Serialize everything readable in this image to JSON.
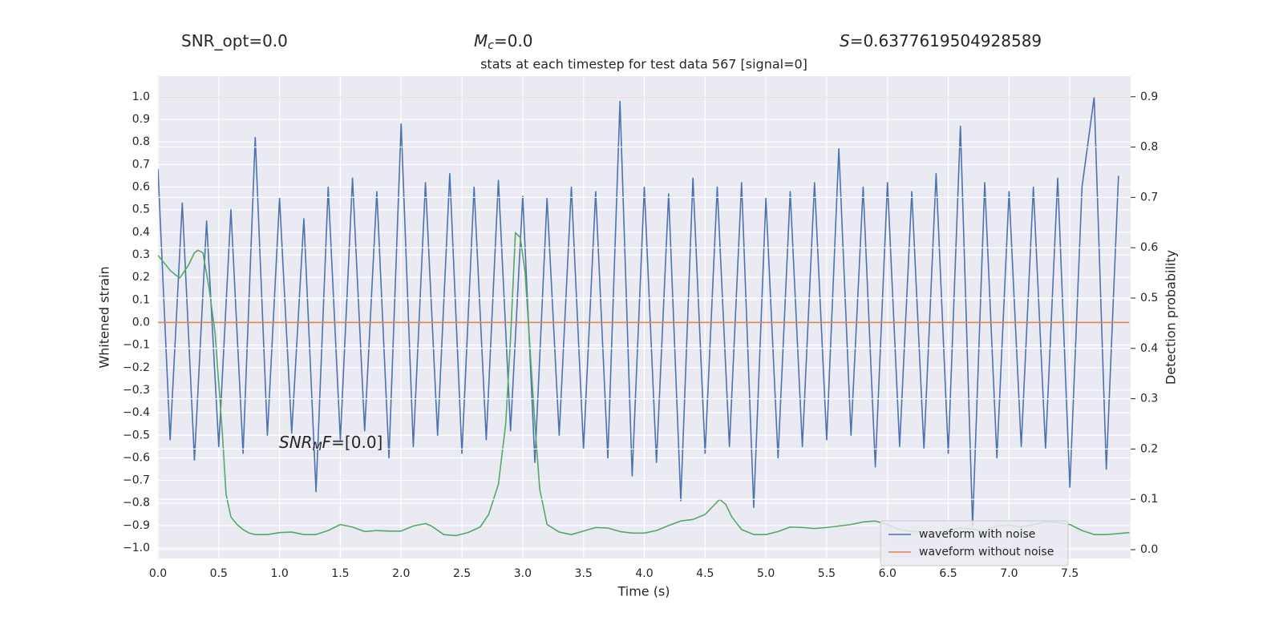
{
  "chart_data": {
    "type": "line",
    "title": "stats at each timestep for test data 567 [signal=0]",
    "x_label": "Time (s)",
    "y_label": "Whitened strain",
    "y2_label": "Detection probability",
    "grid": true,
    "legend_position": "lower right",
    "annotations": [
      {
        "parts": [
          {
            "text": "SNR_opt=0.0",
            "style": "normal"
          }
        ]
      },
      {
        "parts": [
          {
            "text": "M",
            "style": "italic"
          },
          {
            "text": "c",
            "style": "sub"
          },
          {
            "text": "=0.0",
            "style": "normal"
          }
        ]
      },
      {
        "parts": [
          {
            "text": "S",
            "style": "italic"
          },
          {
            "text": "=0.6377619504928589",
            "style": "normal"
          }
        ]
      },
      {
        "parts": [
          {
            "text": "SNR",
            "style": "italic"
          },
          {
            "text": "M",
            "style": "sub"
          },
          {
            "text": "F",
            "style": "italic"
          },
          {
            "text": "=[0.0]",
            "style": "normal"
          }
        ]
      }
    ],
    "xlim": [
      0,
      8.0
    ],
    "ylim": [
      -1.046,
      1.092
    ],
    "y2lim": [
      -0.0175,
      0.941
    ],
    "xticks": [
      {
        "value": 0,
        "label": "0.0"
      },
      {
        "value": 0.5,
        "label": "0.5"
      },
      {
        "value": 1,
        "label": "1.0"
      },
      {
        "value": 1.5,
        "label": "1.5"
      },
      {
        "value": 2,
        "label": "2.0"
      },
      {
        "value": 2.5,
        "label": "2.5"
      },
      {
        "value": 3,
        "label": "3.0"
      },
      {
        "value": 3.5,
        "label": "3.5"
      },
      {
        "value": 4,
        "label": "4.0"
      },
      {
        "value": 4.5,
        "label": "4.5"
      },
      {
        "value": 5,
        "label": "5.0"
      },
      {
        "value": 5.5,
        "label": "5.5"
      },
      {
        "value": 6,
        "label": "6.0"
      },
      {
        "value": 6.5,
        "label": "6.5"
      },
      {
        "value": 7,
        "label": "7.0"
      },
      {
        "value": 7.5,
        "label": "7.5"
      }
    ],
    "yticks": [
      {
        "value": 1,
        "label": "1.0"
      },
      {
        "value": 0.9,
        "label": "0.9"
      },
      {
        "value": 0.8,
        "label": "0.8"
      },
      {
        "value": 0.7,
        "label": "0.7"
      },
      {
        "value": 0.6,
        "label": "0.6"
      },
      {
        "value": 0.5,
        "label": "0.5"
      },
      {
        "value": 0.4,
        "label": "0.4"
      },
      {
        "value": 0.3,
        "label": "0.3"
      },
      {
        "value": 0.2,
        "label": "0.2"
      },
      {
        "value": 0.1,
        "label": "0.1"
      },
      {
        "value": 0,
        "label": "0.0"
      },
      {
        "value": -0.1,
        "label": "−0.1"
      },
      {
        "value": -0.2,
        "label": "−0.2"
      },
      {
        "value": -0.3,
        "label": "−0.3"
      },
      {
        "value": -0.4,
        "label": "−0.4"
      },
      {
        "value": -0.5,
        "label": "−0.5"
      },
      {
        "value": -0.6,
        "label": "−0.6"
      },
      {
        "value": -0.7,
        "label": "−0.7"
      },
      {
        "value": -0.8,
        "label": "−0.8"
      },
      {
        "value": -0.9,
        "label": "−0.9"
      },
      {
        "value": -1,
        "label": "−1.0"
      }
    ],
    "y2ticks": [
      {
        "value": 0,
        "label": "0.0"
      },
      0.1,
      0.2,
      0.3,
      0.4,
      0.5,
      0.6,
      0.7,
      0.8,
      0.9
    ],
    "series": [
      {
        "name": "waveform with noise",
        "color": "#4c72b0",
        "x": [
          0.0,
          0.1,
          0.2,
          0.3,
          0.4,
          0.5,
          0.6,
          0.7,
          0.8,
          0.9,
          1.0,
          1.1,
          1.2,
          1.3,
          1.4,
          1.5,
          1.6,
          1.7,
          1.8,
          1.9,
          2.0,
          2.1,
          2.2,
          2.3,
          2.4,
          2.5,
          2.6,
          2.7,
          2.8,
          2.9,
          3.0,
          3.1,
          3.2,
          3.3,
          3.4,
          3.5,
          3.6,
          3.7,
          3.8,
          3.9,
          4.0,
          4.1,
          4.2,
          4.3,
          4.4,
          4.5,
          4.6,
          4.7,
          4.8,
          4.9,
          5.0,
          5.1,
          5.2,
          5.3,
          5.4,
          5.5,
          5.6,
          5.7,
          5.8,
          5.9,
          6.0,
          6.1,
          6.2,
          6.3,
          6.4,
          6.5,
          6.6,
          6.7,
          6.8,
          6.9,
          7.0,
          7.1,
          7.2,
          7.3,
          7.4,
          7.5,
          7.6,
          7.7,
          7.8,
          7.9
        ],
        "values": [
          0.68,
          -0.52,
          0.53,
          -0.61,
          0.45,
          -0.55,
          0.5,
          -0.58,
          0.82,
          -0.5,
          0.55,
          -0.49,
          0.46,
          -0.75,
          0.6,
          -0.52,
          0.64,
          -0.48,
          0.58,
          -0.6,
          0.88,
          -0.55,
          0.62,
          -0.5,
          0.66,
          -0.58,
          0.6,
          -0.52,
          0.63,
          -0.48,
          0.56,
          -0.62,
          0.55,
          -0.5,
          0.6,
          -0.56,
          0.58,
          -0.6,
          0.98,
          -0.68,
          0.6,
          -0.62,
          0.57,
          -0.79,
          0.64,
          -0.58,
          0.6,
          -0.55,
          0.62,
          -0.82,
          0.55,
          -0.6,
          0.58,
          -0.55,
          0.62,
          -0.52,
          0.77,
          -0.5,
          0.6,
          -0.64,
          0.62,
          -0.55,
          0.58,
          -0.56,
          0.66,
          -0.58,
          0.87,
          -0.9,
          0.62,
          -0.6,
          0.58,
          -0.55,
          0.6,
          -0.56,
          0.64,
          -0.73,
          0.6,
          1.0,
          -0.65,
          0.65
        ]
      },
      {
        "name": "waveform without noise",
        "color": "#dd8452",
        "x": [
          0.0,
          7.99
        ],
        "values": [
          0,
          0
        ]
      },
      {
        "color": "#c44e52",
        "axis": "y2",
        "x": [
          0.0,
          8.0
        ],
        "values": [
          0.9,
          0.9
        ]
      },
      {
        "color": "#55a868",
        "axis": "y2",
        "x": [
          0.0,
          0.05,
          0.1,
          0.15,
          0.18,
          0.25,
          0.3,
          0.33,
          0.37,
          0.42,
          0.47,
          0.5,
          0.53,
          0.56,
          0.6,
          0.65,
          0.7,
          0.75,
          0.8,
          0.9,
          1.0,
          1.1,
          1.2,
          1.3,
          1.4,
          1.5,
          1.6,
          1.7,
          1.8,
          1.9,
          2.0,
          2.1,
          2.2,
          2.25,
          2.35,
          2.45,
          2.55,
          2.65,
          2.72,
          2.8,
          2.86,
          2.9,
          2.94,
          2.98,
          3.02,
          3.06,
          3.1,
          3.14,
          3.2,
          3.3,
          3.4,
          3.5,
          3.6,
          3.7,
          3.8,
          3.9,
          4.0,
          4.1,
          4.2,
          4.3,
          4.4,
          4.5,
          4.58,
          4.62,
          4.67,
          4.72,
          4.8,
          4.9,
          5.0,
          5.1,
          5.2,
          5.3,
          5.4,
          5.5,
          5.6,
          5.7,
          5.8,
          5.9,
          6.0,
          6.1,
          6.2,
          6.3,
          6.4,
          6.5,
          6.6,
          6.7,
          6.8,
          6.9,
          7.0,
          7.1,
          7.2,
          7.3,
          7.4,
          7.5,
          7.6,
          7.7,
          7.8,
          7.9,
          7.99
        ],
        "values": [
          0.585,
          0.57,
          0.555,
          0.545,
          0.54,
          0.565,
          0.59,
          0.595,
          0.59,
          0.52,
          0.43,
          0.33,
          0.23,
          0.11,
          0.065,
          0.05,
          0.04,
          0.033,
          0.03,
          0.03,
          0.034,
          0.035,
          0.03,
          0.03,
          0.038,
          0.05,
          0.045,
          0.036,
          0.038,
          0.037,
          0.037,
          0.047,
          0.052,
          0.047,
          0.03,
          0.028,
          0.034,
          0.045,
          0.07,
          0.13,
          0.25,
          0.42,
          0.63,
          0.62,
          0.55,
          0.4,
          0.25,
          0.12,
          0.05,
          0.035,
          0.03,
          0.037,
          0.044,
          0.043,
          0.036,
          0.033,
          0.033,
          0.038,
          0.048,
          0.057,
          0.06,
          0.07,
          0.09,
          0.1,
          0.09,
          0.065,
          0.04,
          0.03,
          0.03,
          0.036,
          0.045,
          0.044,
          0.042,
          0.044,
          0.047,
          0.05,
          0.055,
          0.057,
          0.05,
          0.04,
          0.036,
          0.035,
          0.035,
          0.038,
          0.043,
          0.041,
          0.036,
          0.047,
          0.049,
          0.045,
          0.05,
          0.055,
          0.054,
          0.05,
          0.038,
          0.03,
          0.03,
          0.032,
          0.034
        ]
      }
    ]
  }
}
